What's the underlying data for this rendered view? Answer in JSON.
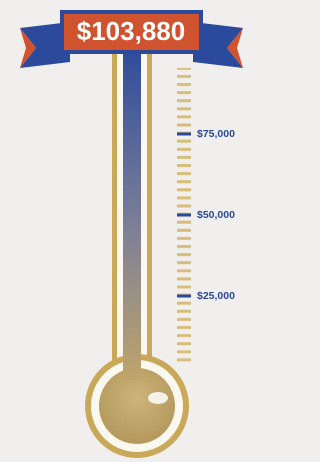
{
  "chart_data": {
    "type": "thermometer",
    "values": [
      103880
    ],
    "value_labels": [
      "$103,880"
    ],
    "ylim": [
      0,
      100000
    ],
    "yticks": [
      {
        "value": 25000,
        "label": "$25,000"
      },
      {
        "value": 50000,
        "label": "$50,000"
      },
      {
        "value": 75000,
        "label": "$75,000"
      }
    ],
    "color": "#2b4a9b"
  }
}
